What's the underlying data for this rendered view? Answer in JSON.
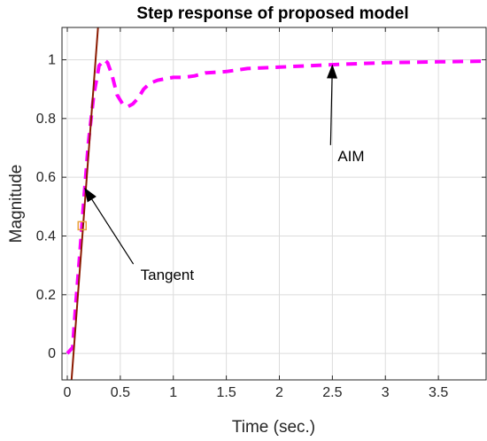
{
  "chart_data": {
    "type": "line",
    "title": "Step response of proposed model",
    "xlabel": "Time (sec.)",
    "ylabel": "Magnitude",
    "xlim": [
      -0.05,
      3.95
    ],
    "ylim": [
      -0.09,
      1.11
    ],
    "x_ticks": [
      0,
      0.5,
      1,
      1.5,
      2,
      2.5,
      3,
      3.5
    ],
    "x_tick_labels": [
      "0",
      "0.5",
      "1",
      "1.5",
      "2",
      "2.5",
      "3",
      "3.5"
    ],
    "y_ticks": [
      0,
      0.2,
      0.4,
      0.6,
      0.8,
      1
    ],
    "y_tick_labels": [
      "0",
      "0.2",
      "0.4",
      "0.6",
      "0.8",
      "1"
    ],
    "grid": true,
    "series": [
      {
        "label": "AIM",
        "style": "dashed",
        "color": "#ff00ff",
        "x": [
          0.0,
          0.05,
          0.08,
          0.12,
          0.16,
          0.2,
          0.25,
          0.3,
          0.35,
          0.38,
          0.42,
          0.47,
          0.52,
          0.57,
          0.62,
          0.67,
          0.72,
          0.78,
          0.85,
          0.92,
          1.0,
          1.1,
          1.2,
          1.3,
          1.5,
          1.7,
          2.0,
          2.3,
          2.6,
          3.0,
          3.5,
          3.95
        ],
        "y": [
          0.0,
          0.02,
          0.17,
          0.35,
          0.54,
          0.72,
          0.88,
          0.98,
          1.0,
          0.99,
          0.95,
          0.88,
          0.85,
          0.84,
          0.85,
          0.87,
          0.9,
          0.92,
          0.93,
          0.935,
          0.94,
          0.94,
          0.945,
          0.955,
          0.96,
          0.97,
          0.975,
          0.98,
          0.985,
          0.99,
          0.993,
          0.995
        ]
      },
      {
        "label": "Tangent",
        "style": "solid",
        "color": "#8b1a00",
        "x": [
          0.04,
          0.29
        ],
        "y": [
          -0.09,
          1.11
        ]
      }
    ],
    "marker": {
      "x": 0.14,
      "y": 0.435,
      "color": "#e8a33d"
    },
    "annotations": [
      {
        "text": "AIM",
        "text_x": 2.55,
        "text_y": 0.655,
        "arrow_to_x": 2.5,
        "arrow_to_y": 0.985
      },
      {
        "text": "Tangent",
        "text_x": 0.69,
        "text_y": 0.25,
        "arrow_to_x": 0.16,
        "arrow_to_y": 0.565
      }
    ],
    "colors": {
      "axes": "#262626",
      "grid": "#dcdcdc",
      "background": "#ffffff"
    }
  }
}
